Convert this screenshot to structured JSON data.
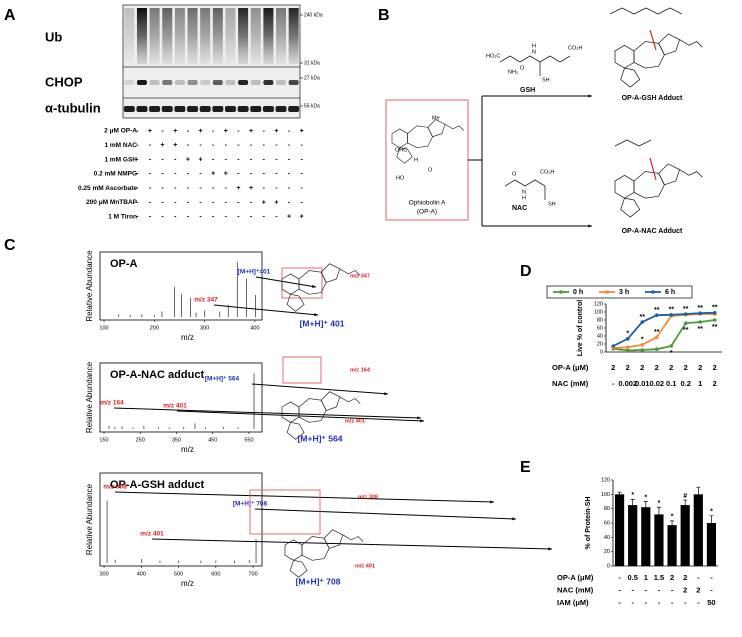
{
  "panel_labels": [
    "A",
    "B",
    "C",
    "D",
    "E"
  ],
  "blot": {
    "rows": [
      "Ub",
      "CHOP",
      "α-tubulin"
    ],
    "markers": [
      "240 kDa",
      "31 kDa",
      "27 kDa",
      "55 kDa"
    ],
    "treatments": [
      {
        "label": "2 μM OP-A",
        "signs": [
          "-",
          "+",
          "-",
          "+",
          "-",
          "+",
          "-",
          "+",
          "-",
          "+",
          "-",
          "+",
          "-",
          "+"
        ]
      },
      {
        "label": "1 mM NAC",
        "signs": [
          "-",
          "-",
          "+",
          "+",
          "-",
          "-",
          "-",
          "-",
          "-",
          "-",
          "-",
          "-",
          "-",
          "-"
        ]
      },
      {
        "label": "1 mM GSH",
        "signs": [
          "-",
          "-",
          "-",
          "-",
          "+",
          "+",
          "-",
          "-",
          "-",
          "-",
          "-",
          "-",
          "-",
          "-"
        ]
      },
      {
        "label": "0.2 mM NMPG",
        "signs": [
          "-",
          "-",
          "-",
          "-",
          "-",
          "-",
          "+",
          "+",
          "-",
          "-",
          "-",
          "-",
          "-",
          "-"
        ]
      },
      {
        "label": "0.25 mM Ascorbate",
        "signs": [
          "-",
          "-",
          "-",
          "-",
          "-",
          "-",
          "-",
          "-",
          "+",
          "+",
          "-",
          "-",
          "-",
          "-"
        ]
      },
      {
        "label": "200 μM MnTBAP",
        "signs": [
          "-",
          "-",
          "-",
          "-",
          "-",
          "-",
          "-",
          "-",
          "-",
          "-",
          "+",
          "+",
          "-",
          "-"
        ]
      },
      {
        "label": "1 M Tiron",
        "signs": [
          "-",
          "-",
          "-",
          "-",
          "-",
          "-",
          "-",
          "-",
          "-",
          "-",
          "-",
          "-",
          "+",
          "+"
        ]
      }
    ]
  },
  "scheme": {
    "start_name": "Ophiobolin A",
    "start_abbr": "(OP-A)",
    "reagents": [
      "GSH",
      "NAC"
    ],
    "products": [
      "OP-A-GSH Adduct",
      "OP-A-NAC Adduct"
    ],
    "start_atoms": [
      "OHC",
      "HO",
      "O",
      "Me",
      "H"
    ],
    "gsh_atoms": [
      "HO₂C",
      "NH₂",
      "N",
      "H",
      "CO₂H",
      "SH",
      "O"
    ],
    "nac_atoms": [
      "O",
      "N",
      "H",
      "CO₂H",
      "SH"
    ]
  },
  "spectra_structures": [
    {
      "fragments": [
        "m/z 347"
      ],
      "ion": "[M+H]⁺ 401"
    },
    {
      "fragments": [
        "m/z 164",
        "m/z 401"
      ],
      "ion": "[M+H]⁺ 564"
    },
    {
      "fragments": [
        "m/z 308",
        "m/z 401"
      ],
      "ion": "[M+H]⁺ 708"
    }
  ],
  "chart_data": [
    {
      "type": "stem",
      "title": "OP-A",
      "x_label": "m/z",
      "y_label": "Relative Abundance",
      "color": "#555555",
      "x": [
        129,
        152,
        175,
        200,
        215,
        240,
        254,
        272,
        283,
        300,
        330,
        347,
        365,
        383,
        401
      ],
      "values": [
        5,
        4,
        5,
        4,
        10,
        55,
        42,
        35,
        8,
        12,
        10,
        22,
        100,
        70,
        40
      ],
      "xlim": [
        92,
        414
      ],
      "ylim": [
        0,
        100
      ],
      "xticks": [
        100,
        200,
        300,
        400
      ],
      "annotations": [
        "m/z 347",
        "[M+H]⁺401"
      ],
      "annotation_colors": [
        "#d62020",
        "#1f2fbf"
      ]
    },
    {
      "type": "stem",
      "title": "OP-A-NAC adduct",
      "x_label": "m/z",
      "y_label": "Relative Abundance",
      "color": "#555555",
      "x": [
        164,
        180,
        200,
        230,
        260,
        300,
        330,
        370,
        401,
        430,
        480,
        520,
        564
      ],
      "values": [
        6,
        4,
        5,
        3,
        6,
        4,
        3,
        4,
        10,
        3,
        4,
        3,
        100
      ],
      "xlim": [
        139,
        586
      ],
      "ylim": [
        0,
        100
      ],
      "xticks": [
        150,
        250,
        350,
        450,
        550
      ],
      "annotations": [
        "m/z 164",
        "m/z 401",
        "[M+H]⁺ 564"
      ],
      "annotation_colors": [
        "#d62020",
        "#d62020",
        "#1f2fbf"
      ]
    },
    {
      "type": "stem",
      "title": "OP-A-GSH adduct",
      "x_label": "m/z",
      "y_label": "Relative Abundance",
      "color": "#555555",
      "x": [
        308,
        330,
        401,
        450,
        500,
        560,
        600,
        650,
        690,
        708
      ],
      "values": [
        78,
        4,
        5,
        3,
        3,
        3,
        3,
        3,
        4,
        30
      ],
      "xlim": [
        289,
        724
      ],
      "ylim": [
        0,
        100
      ],
      "xticks": [
        300,
        400,
        500,
        600,
        700
      ],
      "annotations": [
        "m/z 308",
        "m/z 401",
        "[M+H]⁺ 708"
      ],
      "annotation_colors": [
        "#d62020",
        "#d62020",
        "#1f2fbf"
      ]
    },
    {
      "type": "line",
      "y_label": "Live % of control",
      "categories": [
        null,
        null,
        null,
        null,
        null,
        null,
        null,
        null
      ],
      "ylim": [
        0,
        120
      ],
      "yticks": [
        0,
        20,
        40,
        60,
        80,
        100,
        120
      ],
      "grid": false,
      "legend": "top",
      "series": [
        {
          "name": "0 h",
          "color": "#4a9a3a",
          "values": [
            8,
            4,
            5,
            7,
            15,
            72,
            75,
            80
          ],
          "annotation_side": "below",
          "annotations": [
            null,
            null,
            null,
            null,
            "*",
            "**",
            "**",
            "**"
          ]
        },
        {
          "name": "3 h",
          "color": "#f08a3c",
          "values": [
            10,
            12,
            18,
            37,
            90,
            93,
            95,
            95
          ],
          "annotation_side": "above",
          "annotations": [
            null,
            null,
            "*",
            "**",
            null,
            null,
            null,
            null
          ]
        },
        {
          "name": "6 h",
          "color": "#1f5fa6",
          "values": [
            15,
            33,
            75,
            92,
            93,
            95,
            97,
            98
          ],
          "annotation_side": "above",
          "annotations": [
            null,
            "*",
            "**",
            "**",
            "**",
            "**",
            "**",
            "**"
          ]
        }
      ],
      "x_table": [
        {
          "label": "OP-A (μM)",
          "cells": [
            "2",
            "2",
            "2",
            "2",
            "2",
            "2",
            "2",
            "2"
          ]
        },
        {
          "label": "NAC (mM)",
          "cells": [
            "-",
            "0.002",
            "0.01",
            "0.02",
            "0.1",
            "0.2",
            "1",
            "2"
          ]
        }
      ]
    },
    {
      "type": "bar",
      "y_label": "% of Protein-SH",
      "categories": [
        null,
        null,
        null,
        null,
        null,
        null,
        null,
        null
      ],
      "values": [
        100,
        85,
        82,
        72,
        57,
        85,
        100,
        60
      ],
      "errors": [
        3,
        8,
        8,
        10,
        6,
        7,
        10,
        10
      ],
      "color": "#000000",
      "annotations": [
        null,
        "*",
        "*",
        "*",
        "*",
        "#",
        null,
        "*"
      ],
      "ylim": [
        0,
        120
      ],
      "yticks": [
        0,
        20,
        40,
        60,
        80,
        100,
        120
      ],
      "grid": false,
      "x_table": [
        {
          "label": "OP-A (μM)",
          "cells": [
            "-",
            "0.5",
            "1",
            "1.5",
            "2",
            "2",
            "-",
            "-"
          ]
        },
        {
          "label": "NAC (mM)",
          "cells": [
            "-",
            "-",
            "-",
            "-",
            "-",
            "2",
            "2",
            "-"
          ]
        },
        {
          "label": "IAM (μM)",
          "cells": [
            "-",
            "-",
            "-",
            "-",
            "-",
            "-",
            "-",
            "50"
          ]
        }
      ]
    }
  ]
}
